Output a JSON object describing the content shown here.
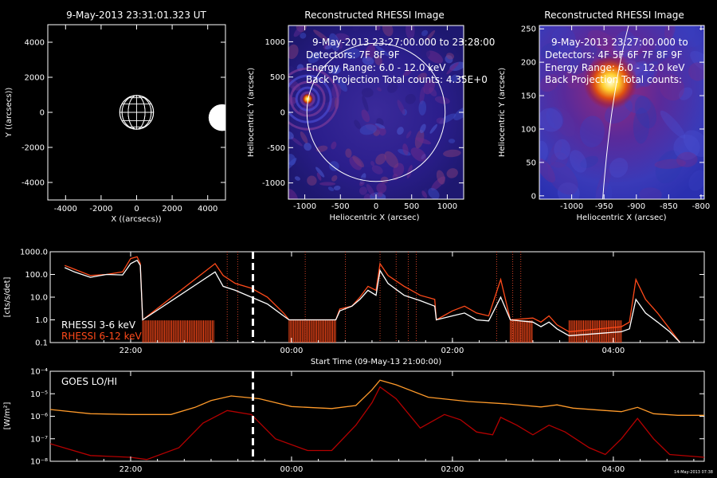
{
  "colors": {
    "background": "#000000",
    "axis": "#ffffff",
    "rhessi_low": "#ffffff",
    "rhessi_high": "#ff4a1a",
    "goes_lo": "#ff9a2a",
    "goes_hi": "#b40000",
    "marker": "#ffffff",
    "event_lines": "#ff5030"
  },
  "panel1": {
    "title": "9-May-2013 23:31:01.323 UT",
    "xlabel": "X ((arcsecs))",
    "ylabel": "Y ((arcsecs))",
    "xticks": [
      "-4000",
      "-2000",
      "0",
      "2000",
      "4000"
    ],
    "yticks": [
      "4000",
      "2000",
      "0",
      "-2000",
      "-4000"
    ]
  },
  "panel2": {
    "title": "Reconstructed RHESSI Image",
    "info": [
      "9-May-2013 23:27:00.000 to 23:28:00",
      "Detectors: 7F 8F 9F",
      "Energy Range: 6.0 - 12.0 keV",
      "Back Projection     Total counts: 4.35E+0"
    ],
    "xlabel": "Heliocentric X (arcsec)",
    "ylabel": "Heliocentric Y (arcsec)",
    "xticks": [
      "-1000",
      "-500",
      "0",
      "500",
      "1000"
    ],
    "yticks": [
      "1000",
      "500",
      "0",
      "-500",
      "-1000"
    ]
  },
  "panel3": {
    "title": "Reconstructed RHESSI Image",
    "info": [
      "9-May-2013 23:27:00.000 to",
      "Detectors: 4F 5F 6F 7F 8F 9F",
      "Energy Range: 6.0 - 12.0 keV",
      "Back Projection     Total counts:"
    ],
    "xlabel": "Heliocentric X (arcsec)",
    "ylabel": "Heliocentric Y (arcsec)",
    "xticks": [
      "-1000",
      "-950",
      "-900",
      "-850",
      "-800"
    ],
    "yticks": [
      "250",
      "200",
      "150",
      "100",
      "50",
      "0"
    ]
  },
  "panel4": {
    "ylabel": "[cts/s/det]",
    "xlabel": "Start Time (09-May-13 21:00:00)",
    "yticks": [
      "1000.0",
      "100.0",
      "10.0",
      "1.0",
      "0.1"
    ],
    "xticks": [
      "22:00",
      "00:00",
      "02:00",
      "04:00"
    ],
    "legend": [
      "RHESSI  3-6 keV",
      "RHESSI 6-12 keV"
    ]
  },
  "panel5": {
    "ylabel": "[W/m²]",
    "legend": "GOES LO/HI",
    "yticks": [
      "10⁻⁴",
      "10⁻⁵",
      "10⁻⁶",
      "10⁻⁷",
      "10⁻⁸"
    ],
    "xticks": [
      "22:00",
      "00:00",
      "02:00",
      "04:00"
    ],
    "stamp": "14-May-2013 07:38"
  },
  "chart_data": [
    {
      "type": "image",
      "title": "9-May-2013 23:31:01.323 UT",
      "xlabel": "X ((arcsecs))",
      "ylabel": "Y ((arcsecs))",
      "xlim": [
        -5000,
        5000
      ],
      "ylim": [
        -5000,
        5000
      ],
      "objects": [
        {
          "name": "sun grid",
          "x": 0,
          "y": 0,
          "radius": 950
        },
        {
          "name": "disk",
          "x": 4800,
          "y": -300,
          "radius": 750
        }
      ]
    },
    {
      "type": "image",
      "title": "Reconstructed RHESSI Image",
      "xlabel": "Heliocentric X (arcsec)",
      "ylabel": "Heliocentric Y (arcsec)",
      "xlim": [
        -1230,
        1230
      ],
      "ylim": [
        -1230,
        1230
      ],
      "source": {
        "x": -960,
        "y": 190
      },
      "limb_radius": 970
    },
    {
      "type": "image",
      "title": "Reconstructed RHESSI Image",
      "xlabel": "Heliocentric X (arcsec)",
      "ylabel": "Heliocentric Y (arcsec)",
      "xlim": [
        -1050,
        -795
      ],
      "ylim": [
        -5,
        255
      ],
      "source": {
        "x": -940,
        "y": 170
      }
    },
    {
      "type": "line",
      "ylabel": "[cts/s/det]",
      "xlabel": "Start Time (09-May-13 21:00:00)",
      "yscale": "log",
      "ylim": [
        0.1,
        1000
      ],
      "xlim_hours": [
        21.0,
        29.13
      ],
      "x_unit": "hours since 09-May-13 00:00",
      "marker_x": 23.52,
      "event_lines_x": [
        23.2,
        23.33,
        24.17,
        24.67,
        25.1,
        25.3,
        25.45,
        25.55,
        26.55,
        26.75,
        26.85
      ],
      "data_gaps": [
        [
          22.15,
          23.05
        ],
        [
          23.97,
          24.55
        ],
        [
          26.72,
          27.0
        ],
        [
          27.45,
          28.1
        ]
      ],
      "series": [
        {
          "name": "RHESSI  3-6 keV",
          "points": [
            [
              21.18,
              200
            ],
            [
              21.3,
              130
            ],
            [
              21.5,
              75
            ],
            [
              21.7,
              100
            ],
            [
              21.9,
              95
            ],
            [
              22.0,
              300
            ],
            [
              22.08,
              420
            ],
            [
              22.12,
              250
            ],
            [
              22.15,
              1.0
            ],
            [
              23.05,
              130
            ],
            [
              23.15,
              30
            ],
            [
              23.3,
              20
            ],
            [
              23.5,
              10
            ],
            [
              23.7,
              5
            ],
            [
              23.9,
              1.5
            ],
            [
              23.97,
              1.0
            ],
            [
              24.55,
              1.0
            ],
            [
              24.6,
              2.5
            ],
            [
              24.75,
              4
            ],
            [
              24.85,
              8
            ],
            [
              24.95,
              20
            ],
            [
              25.05,
              12
            ],
            [
              25.1,
              150
            ],
            [
              25.2,
              40
            ],
            [
              25.4,
              12
            ],
            [
              25.6,
              7
            ],
            [
              25.78,
              4
            ],
            [
              25.8,
              1.0
            ],
            [
              26.0,
              1.5
            ],
            [
              26.15,
              2.0
            ],
            [
              26.3,
              1.0
            ],
            [
              26.45,
              0.9
            ],
            [
              26.6,
              10
            ],
            [
              26.72,
              1.0
            ],
            [
              27.0,
              0.8
            ],
            [
              27.1,
              0.5
            ],
            [
              27.2,
              0.8
            ],
            [
              27.3,
              0.4
            ],
            [
              27.45,
              0.2
            ],
            [
              28.1,
              0.3
            ],
            [
              28.2,
              0.4
            ],
            [
              28.28,
              8
            ],
            [
              28.4,
              2
            ],
            [
              28.55,
              0.8
            ],
            [
              28.7,
              0.3
            ],
            [
              28.83,
              0.1
            ]
          ]
        },
        {
          "name": "RHESSI 6-12 keV",
          "points": [
            [
              21.18,
              250
            ],
            [
              21.3,
              170
            ],
            [
              21.5,
              90
            ],
            [
              21.7,
              100
            ],
            [
              21.9,
              130
            ],
            [
              22.0,
              500
            ],
            [
              22.08,
              600
            ],
            [
              22.12,
              300
            ],
            [
              22.15,
              1.0
            ],
            [
              23.05,
              300
            ],
            [
              23.15,
              90
            ],
            [
              23.3,
              40
            ],
            [
              23.5,
              25
            ],
            [
              23.7,
              10
            ],
            [
              23.9,
              2
            ],
            [
              23.97,
              1.0
            ],
            [
              24.55,
              1.0
            ],
            [
              24.6,
              3
            ],
            [
              24.75,
              4
            ],
            [
              24.85,
              10
            ],
            [
              24.95,
              30
            ],
            [
              25.05,
              20
            ],
            [
              25.1,
              300
            ],
            [
              25.2,
              90
            ],
            [
              25.4,
              30
            ],
            [
              25.6,
              12
            ],
            [
              25.78,
              8
            ],
            [
              25.8,
              1.0
            ],
            [
              26.0,
              2.5
            ],
            [
              26.15,
              4
            ],
            [
              26.3,
              2
            ],
            [
              26.45,
              1.5
            ],
            [
              26.6,
              60
            ],
            [
              26.72,
              1.0
            ],
            [
              27.0,
              1.2
            ],
            [
              27.1,
              0.8
            ],
            [
              27.2,
              1.5
            ],
            [
              27.3,
              0.6
            ],
            [
              27.45,
              0.3
            ],
            [
              28.1,
              0.5
            ],
            [
              28.2,
              0.8
            ],
            [
              28.28,
              60
            ],
            [
              28.4,
              8
            ],
            [
              28.55,
              2
            ],
            [
              28.7,
              0.4
            ],
            [
              28.83,
              0.1
            ]
          ]
        }
      ]
    },
    {
      "type": "line",
      "legend": "GOES LO/HI",
      "ylabel": "[W/m²]",
      "yscale": "log",
      "ylim": [
        1e-08,
        0.0001
      ],
      "xlim_hours": [
        21.0,
        29.13
      ],
      "x_unit": "hours since 09-May-13 00:00",
      "marker_x": 23.52,
      "series": [
        {
          "name": "GOES LO",
          "points": [
            [
              21.0,
              2e-06
            ],
            [
              21.5,
              1.3e-06
            ],
            [
              22.0,
              1.2e-06
            ],
            [
              22.5,
              1.2e-06
            ],
            [
              22.8,
              2.5e-06
            ],
            [
              23.0,
              5e-06
            ],
            [
              23.25,
              8e-06
            ],
            [
              23.6,
              6e-06
            ],
            [
              24.0,
              2.7e-06
            ],
            [
              24.5,
              2.2e-06
            ],
            [
              24.8,
              3e-06
            ],
            [
              25.0,
              1.5e-05
            ],
            [
              25.1,
              4e-05
            ],
            [
              25.3,
              2.5e-05
            ],
            [
              25.7,
              7e-06
            ],
            [
              26.2,
              4.5e-06
            ],
            [
              26.7,
              3.5e-06
            ],
            [
              27.1,
              2.6e-06
            ],
            [
              27.3,
              3.2e-06
            ],
            [
              27.5,
              2.3e-06
            ],
            [
              27.9,
              1.8e-06
            ],
            [
              28.1,
              1.6e-06
            ],
            [
              28.3,
              2.5e-06
            ],
            [
              28.5,
              1.3e-06
            ],
            [
              28.8,
              1.1e-06
            ],
            [
              29.13,
              1.1e-06
            ]
          ]
        },
        {
          "name": "GOES HI",
          "points": [
            [
              21.0,
              6e-08
            ],
            [
              21.5,
              1.8e-08
            ],
            [
              22.0,
              1.5e-08
            ],
            [
              22.2,
              1.2e-08
            ],
            [
              22.6,
              4e-08
            ],
            [
              22.9,
              5e-07
            ],
            [
              23.2,
              1.8e-06
            ],
            [
              23.5,
              1.2e-06
            ],
            [
              23.8,
              1e-07
            ],
            [
              24.2,
              3e-08
            ],
            [
              24.5,
              3e-08
            ],
            [
              24.8,
              4e-07
            ],
            [
              25.0,
              4e-06
            ],
            [
              25.1,
              2e-05
            ],
            [
              25.3,
              6e-06
            ],
            [
              25.6,
              3e-07
            ],
            [
              25.9,
              1.2e-06
            ],
            [
              26.1,
              7e-07
            ],
            [
              26.3,
              2e-07
            ],
            [
              26.5,
              1.5e-07
            ],
            [
              26.6,
              9e-07
            ],
            [
              26.8,
              4e-07
            ],
            [
              27.0,
              1.5e-07
            ],
            [
              27.2,
              4e-07
            ],
            [
              27.4,
              2e-07
            ],
            [
              27.7,
              4e-08
            ],
            [
              27.9,
              2e-08
            ],
            [
              28.1,
              1e-07
            ],
            [
              28.3,
              8e-07
            ],
            [
              28.5,
              1e-07
            ],
            [
              28.7,
              2e-08
            ],
            [
              29.13,
              1.5e-08
            ]
          ]
        }
      ]
    }
  ]
}
